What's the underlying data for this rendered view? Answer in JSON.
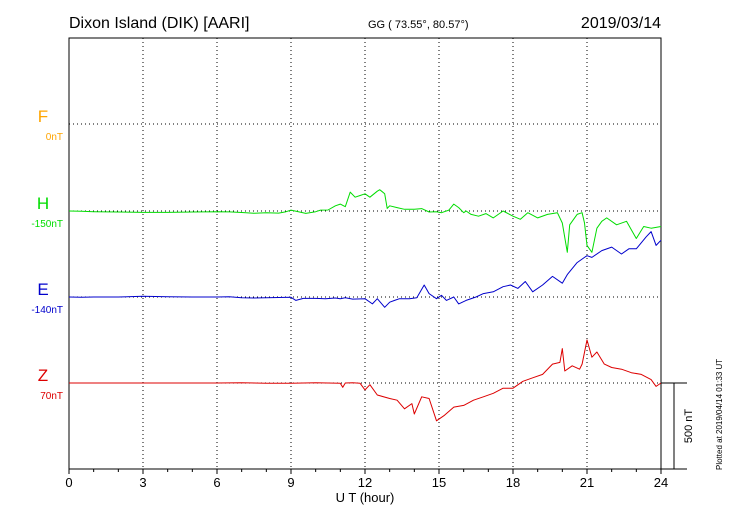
{
  "header": {
    "station": "Dixon Island (DIK)  [AARI]",
    "coords": "GG ( 73.55°,  80.57°)",
    "date": "2019/03/14"
  },
  "footer_note": "Plotted at 2019/04/14 01:33 UT",
  "chart_data": {
    "type": "line",
    "xlabel": "U T (hour)",
    "xlim": [
      0,
      24
    ],
    "xticks": [
      0,
      3,
      6,
      9,
      12,
      15,
      18,
      21,
      24
    ],
    "grid": true,
    "scale_bar": {
      "label": "500 nT",
      "value_nT": 500
    },
    "series": [
      {
        "name": "F",
        "baseline": "0nT",
        "color": "#ffa500",
        "points": []
      },
      {
        "name": "H",
        "baseline": "-150nT",
        "color": "#00dd00",
        "points": [
          [
            0,
            0
          ],
          [
            0.5,
            -2
          ],
          [
            1,
            -4
          ],
          [
            2,
            -6
          ],
          [
            3,
            -8
          ],
          [
            4,
            -8
          ],
          [
            5,
            -6
          ],
          [
            6,
            -4
          ],
          [
            6.5,
            -5
          ],
          [
            7,
            -9
          ],
          [
            7.5,
            -13
          ],
          [
            8,
            -10
          ],
          [
            8.5,
            -12
          ],
          [
            8.8,
            -4
          ],
          [
            9,
            5
          ],
          [
            9.3,
            -4
          ],
          [
            9.6,
            -14
          ],
          [
            10,
            -4
          ],
          [
            10.2,
            5
          ],
          [
            10.5,
            6
          ],
          [
            10.8,
            30
          ],
          [
            11,
            40
          ],
          [
            11.2,
            25
          ],
          [
            11.4,
            110
          ],
          [
            11.6,
            80
          ],
          [
            11.8,
            90
          ],
          [
            12,
            100
          ],
          [
            12.2,
            80
          ],
          [
            12.5,
            115
          ],
          [
            12.6,
            124
          ],
          [
            12.8,
            100
          ],
          [
            12.9,
            15
          ],
          [
            13,
            30
          ],
          [
            13.3,
            20
          ],
          [
            13.6,
            10
          ],
          [
            14,
            10
          ],
          [
            14.3,
            14
          ],
          [
            14.6,
            -6
          ],
          [
            14.9,
            -4
          ],
          [
            15.1,
            -10
          ],
          [
            15.4,
            5
          ],
          [
            15.6,
            40
          ],
          [
            15.8,
            20
          ],
          [
            16.0,
            -10
          ],
          [
            16.1,
            0
          ],
          [
            16.3,
            -20
          ],
          [
            16.6,
            -30
          ],
          [
            16.9,
            -15
          ],
          [
            17.2,
            -40
          ],
          [
            17.6,
            0
          ],
          [
            18,
            -30
          ],
          [
            18.3,
            -48
          ],
          [
            18.6,
            -10
          ],
          [
            19,
            -40
          ],
          [
            19.4,
            -20
          ],
          [
            19.8,
            -10
          ],
          [
            20,
            -70
          ],
          [
            20.2,
            -240
          ],
          [
            20.3,
            -80
          ],
          [
            20.6,
            -20
          ],
          [
            20.8,
            -10
          ],
          [
            20.9,
            -70
          ],
          [
            21,
            -200
          ],
          [
            21.2,
            -240
          ],
          [
            21.4,
            -100
          ],
          [
            21.6,
            -60
          ],
          [
            21.8,
            -40
          ],
          [
            22.2,
            -80
          ],
          [
            22.6,
            -60
          ],
          [
            23,
            -160
          ],
          [
            23.3,
            -90
          ],
          [
            23.6,
            -100
          ],
          [
            24,
            -90
          ]
        ]
      },
      {
        "name": "E",
        "baseline": "-140nT",
        "color": "#0000cc",
        "points": [
          [
            0,
            0
          ],
          [
            0.5,
            -2
          ],
          [
            1,
            0
          ],
          [
            2,
            0
          ],
          [
            3,
            4
          ],
          [
            4,
            2
          ],
          [
            5,
            0
          ],
          [
            6,
            0
          ],
          [
            6.5,
            2
          ],
          [
            7,
            -4
          ],
          [
            7.5,
            -6
          ],
          [
            8,
            -4
          ],
          [
            9,
            -2
          ],
          [
            9.2,
            -20
          ],
          [
            9.5,
            -8
          ],
          [
            10,
            -8
          ],
          [
            10.4,
            -10
          ],
          [
            10.8,
            -6
          ],
          [
            11,
            -10
          ],
          [
            11.2,
            -4
          ],
          [
            11.5,
            -12
          ],
          [
            12,
            -10
          ],
          [
            12.3,
            -40
          ],
          [
            12.5,
            -10
          ],
          [
            12.8,
            -60
          ],
          [
            13,
            -30
          ],
          [
            13.2,
            -20
          ],
          [
            13.4,
            -10
          ],
          [
            13.8,
            -10
          ],
          [
            14.1,
            -4
          ],
          [
            14.4,
            70
          ],
          [
            14.6,
            20
          ],
          [
            14.9,
            -10
          ],
          [
            15.1,
            10
          ],
          [
            15.3,
            -20
          ],
          [
            15.6,
            0
          ],
          [
            15.8,
            -40
          ],
          [
            16.1,
            -20
          ],
          [
            16.5,
            0
          ],
          [
            16.8,
            20
          ],
          [
            17.2,
            30
          ],
          [
            17.6,
            60
          ],
          [
            17.9,
            70
          ],
          [
            18.2,
            50
          ],
          [
            18.5,
            90
          ],
          [
            18.8,
            30
          ],
          [
            19.2,
            70
          ],
          [
            19.6,
            120
          ],
          [
            20,
            80
          ],
          [
            20.2,
            130
          ],
          [
            20.6,
            200
          ],
          [
            20.9,
            230
          ],
          [
            21,
            240
          ],
          [
            21.2,
            230
          ],
          [
            21.6,
            270
          ],
          [
            22,
            290
          ],
          [
            22.4,
            250
          ],
          [
            22.7,
            280
          ],
          [
            23,
            280
          ],
          [
            23.4,
            350
          ],
          [
            23.6,
            380
          ],
          [
            23.8,
            300
          ],
          [
            24,
            330
          ]
        ]
      },
      {
        "name": "Z",
        "baseline": "70nT",
        "color": "#dd0000",
        "points": [
          [
            0,
            0
          ],
          [
            1,
            0
          ],
          [
            2,
            0
          ],
          [
            3,
            0
          ],
          [
            4,
            0
          ],
          [
            5,
            0
          ],
          [
            6,
            0
          ],
          [
            7,
            2
          ],
          [
            8,
            -2
          ],
          [
            9,
            -2
          ],
          [
            9.5,
            0
          ],
          [
            10,
            1
          ],
          [
            10.5,
            0
          ],
          [
            11,
            -2
          ],
          [
            11.1,
            -25
          ],
          [
            11.2,
            0
          ],
          [
            11.5,
            2
          ],
          [
            11.8,
            -2
          ],
          [
            12,
            -40
          ],
          [
            12.2,
            -10
          ],
          [
            12.5,
            -70
          ],
          [
            13,
            -90
          ],
          [
            13.3,
            -100
          ],
          [
            13.6,
            -150
          ],
          [
            13.9,
            -120
          ],
          [
            14,
            -180
          ],
          [
            14.3,
            -80
          ],
          [
            14.6,
            -90
          ],
          [
            14.9,
            -220
          ],
          [
            15.2,
            -190
          ],
          [
            15.6,
            -140
          ],
          [
            16,
            -130
          ],
          [
            16.4,
            -100
          ],
          [
            16.8,
            -80
          ],
          [
            17.2,
            -60
          ],
          [
            17.6,
            -30
          ],
          [
            18,
            -30
          ],
          [
            18.4,
            10
          ],
          [
            18.8,
            30
          ],
          [
            19.2,
            50
          ],
          [
            19.6,
            110
          ],
          [
            19.9,
            120
          ],
          [
            20,
            200
          ],
          [
            20.1,
            70
          ],
          [
            20.4,
            100
          ],
          [
            20.7,
            80
          ],
          [
            20.8,
            110
          ],
          [
            21,
            250
          ],
          [
            21.2,
            150
          ],
          [
            21.4,
            180
          ],
          [
            21.7,
            110
          ],
          [
            22,
            90
          ],
          [
            22.4,
            80
          ],
          [
            22.8,
            60
          ],
          [
            23.2,
            50
          ],
          [
            23.6,
            20
          ],
          [
            23.8,
            -20
          ],
          [
            24,
            0
          ]
        ]
      }
    ]
  }
}
